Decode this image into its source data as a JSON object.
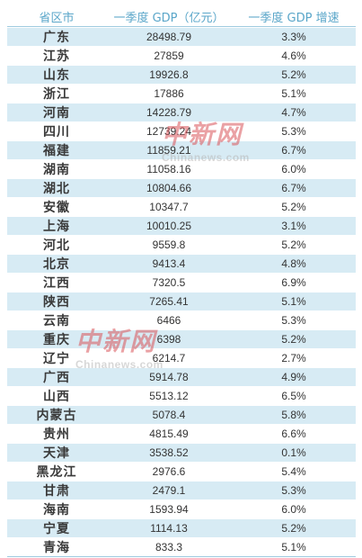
{
  "table": {
    "headers": [
      "省区市",
      "一季度 GDP（亿元）",
      "一季度 GDP 增速"
    ],
    "rows": [
      {
        "province": "广东",
        "gdp": "28498.79",
        "growth": "3.3%"
      },
      {
        "province": "江苏",
        "gdp": "27859",
        "growth": "4.6%"
      },
      {
        "province": "山东",
        "gdp": "19926.8",
        "growth": "5.2%"
      },
      {
        "province": "浙江",
        "gdp": "17886",
        "growth": "5.1%"
      },
      {
        "province": "河南",
        "gdp": "14228.79",
        "growth": "4.7%"
      },
      {
        "province": "四川",
        "gdp": "12739.24",
        "growth": "5.3%"
      },
      {
        "province": "福建",
        "gdp": "11859.21",
        "growth": "6.7%"
      },
      {
        "province": "湖南",
        "gdp": "11058.16",
        "growth": "6.0%"
      },
      {
        "province": "湖北",
        "gdp": "10804.66",
        "growth": "6.7%"
      },
      {
        "province": "安徽",
        "gdp": "10347.7",
        "growth": "5.2%"
      },
      {
        "province": "上海",
        "gdp": "10010.25",
        "growth": "3.1%"
      },
      {
        "province": "河北",
        "gdp": "9559.8",
        "growth": "5.2%"
      },
      {
        "province": "北京",
        "gdp": "9413.4",
        "growth": "4.8%"
      },
      {
        "province": "江西",
        "gdp": "7320.5",
        "growth": "6.9%"
      },
      {
        "province": "陕西",
        "gdp": "7265.41",
        "growth": "5.1%"
      },
      {
        "province": "云南",
        "gdp": "6466",
        "growth": "5.3%"
      },
      {
        "province": "重庆",
        "gdp": "6398",
        "growth": "5.2%"
      },
      {
        "province": "辽宁",
        "gdp": "6214.7",
        "growth": "2.7%"
      },
      {
        "province": "广西",
        "gdp": "5914.78",
        "growth": "4.9%"
      },
      {
        "province": "山西",
        "gdp": "5513.12",
        "growth": "6.5%"
      },
      {
        "province": "内蒙古",
        "gdp": "5078.4",
        "growth": "5.8%"
      },
      {
        "province": "贵州",
        "gdp": "4815.49",
        "growth": "6.6%"
      },
      {
        "province": "天津",
        "gdp": "3538.52",
        "growth": "0.1%"
      },
      {
        "province": "黑龙江",
        "gdp": "2976.6",
        "growth": "5.4%"
      },
      {
        "province": "甘肃",
        "gdp": "2479.1",
        "growth": "5.3%"
      },
      {
        "province": "海南",
        "gdp": "1593.94",
        "growth": "6.0%"
      },
      {
        "province": "宁夏",
        "gdp": "1114.13",
        "growth": "5.2%"
      },
      {
        "province": "青海",
        "gdp": "833.3",
        "growth": "5.1%"
      }
    ]
  },
  "watermark": {
    "logo_text": "中新网",
    "url_text": "Chinanews.com"
  },
  "colors": {
    "header_text": "#5aa6c9",
    "row_shade": "#d7ebf4",
    "watermark_red": "#d9555a"
  }
}
